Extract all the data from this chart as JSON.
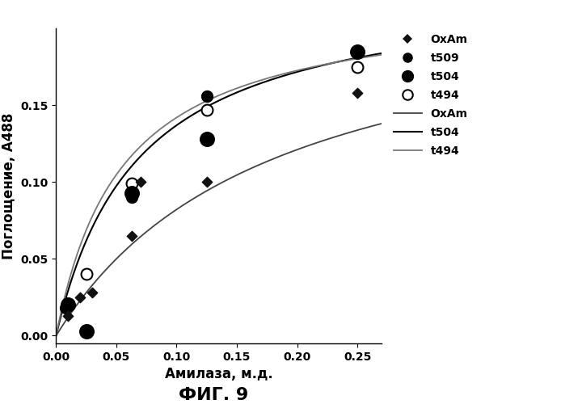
{
  "title": "ФИГ. 9",
  "xlabel": "Амилаза, м.д.",
  "ylabel": "Поглощение, А488",
  "xlim": [
    0,
    0.27
  ],
  "ylim": [
    -0.005,
    0.2
  ],
  "xticks": [
    0,
    0.05,
    0.1,
    0.15,
    0.2,
    0.25
  ],
  "yticks": [
    0,
    0.05,
    0.1,
    0.15
  ],
  "scatter_OxAm": {
    "x": [
      0.01,
      0.02,
      0.03,
      0.063,
      0.07,
      0.125,
      0.25
    ],
    "y": [
      0.013,
      0.025,
      0.028,
      0.065,
      0.1,
      0.1,
      0.158
    ],
    "marker": "D",
    "color": "#111111",
    "size": 40,
    "label": "OxAm"
  },
  "scatter_t509": {
    "x": [
      0.008,
      0.025,
      0.063,
      0.125,
      0.25
    ],
    "y": [
      0.018,
      0.003,
      0.09,
      0.156,
      0.185
    ],
    "marker": "o",
    "color": "#000000",
    "size": 100,
    "label": "t509"
  },
  "scatter_t504": {
    "x": [
      0.01,
      0.025,
      0.063,
      0.125,
      0.25
    ],
    "y": [
      0.02,
      0.003,
      0.093,
      0.128,
      0.185
    ],
    "marker": "o",
    "color": "#000000",
    "size": 160,
    "label": "t504"
  },
  "scatter_t494": {
    "x": [
      0.01,
      0.025,
      0.063,
      0.125,
      0.25
    ],
    "y": [
      0.02,
      0.04,
      0.099,
      0.147,
      0.175
    ],
    "marker": "o",
    "color": "white",
    "edgecolor": "#000000",
    "linewidth": 1.5,
    "size": 100,
    "label": "t494"
  },
  "curve_OxAm": {
    "Vmax": 0.23,
    "Km": 0.18,
    "label": "OxAm",
    "color": "#444444",
    "linewidth": 1.3
  },
  "curve_t504": {
    "Vmax": 0.23,
    "Km": 0.068,
    "label": "t504",
    "color": "#000000",
    "linewidth": 1.5
  },
  "curve_t494": {
    "Vmax": 0.22,
    "Km": 0.055,
    "label": "t494",
    "color": "#777777",
    "linewidth": 1.3,
    "dashes": [
      4,
      2
    ]
  },
  "background_color": "#ffffff",
  "tick_fontsize": 10,
  "label_fontsize": 12,
  "title_fontsize": 16,
  "legend_fontsize": 10
}
